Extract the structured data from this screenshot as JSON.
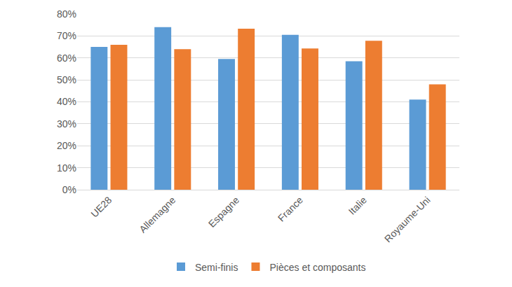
{
  "chart_data": {
    "type": "bar",
    "categories": [
      "UE28",
      "Allemagne",
      "Espagne",
      "France",
      "Italie",
      "Royaume-Uni"
    ],
    "series": [
      {
        "name": "Semi-finis",
        "color": "#5b9bd5",
        "values": [
          65,
          74,
          59.5,
          70.5,
          58.5,
          41
        ]
      },
      {
        "name": "Pièces et composants",
        "color": "#ed7d31",
        "values": [
          66,
          64,
          73.3,
          64.3,
          67.8,
          48
        ]
      }
    ],
    "ylim": [
      0,
      80
    ],
    "yticks": [
      {
        "value": 0,
        "label": "0%"
      },
      {
        "value": 10,
        "label": "10%"
      },
      {
        "value": 20,
        "label": "20%"
      },
      {
        "value": 30,
        "label": "30%"
      },
      {
        "value": 40,
        "label": "40%"
      },
      {
        "value": 50,
        "label": "50%"
      },
      {
        "value": 60,
        "label": "60%"
      },
      {
        "value": 70,
        "label": "70%"
      },
      {
        "value": 80,
        "label": "80%"
      }
    ],
    "grid": true,
    "legend": "bottom"
  }
}
